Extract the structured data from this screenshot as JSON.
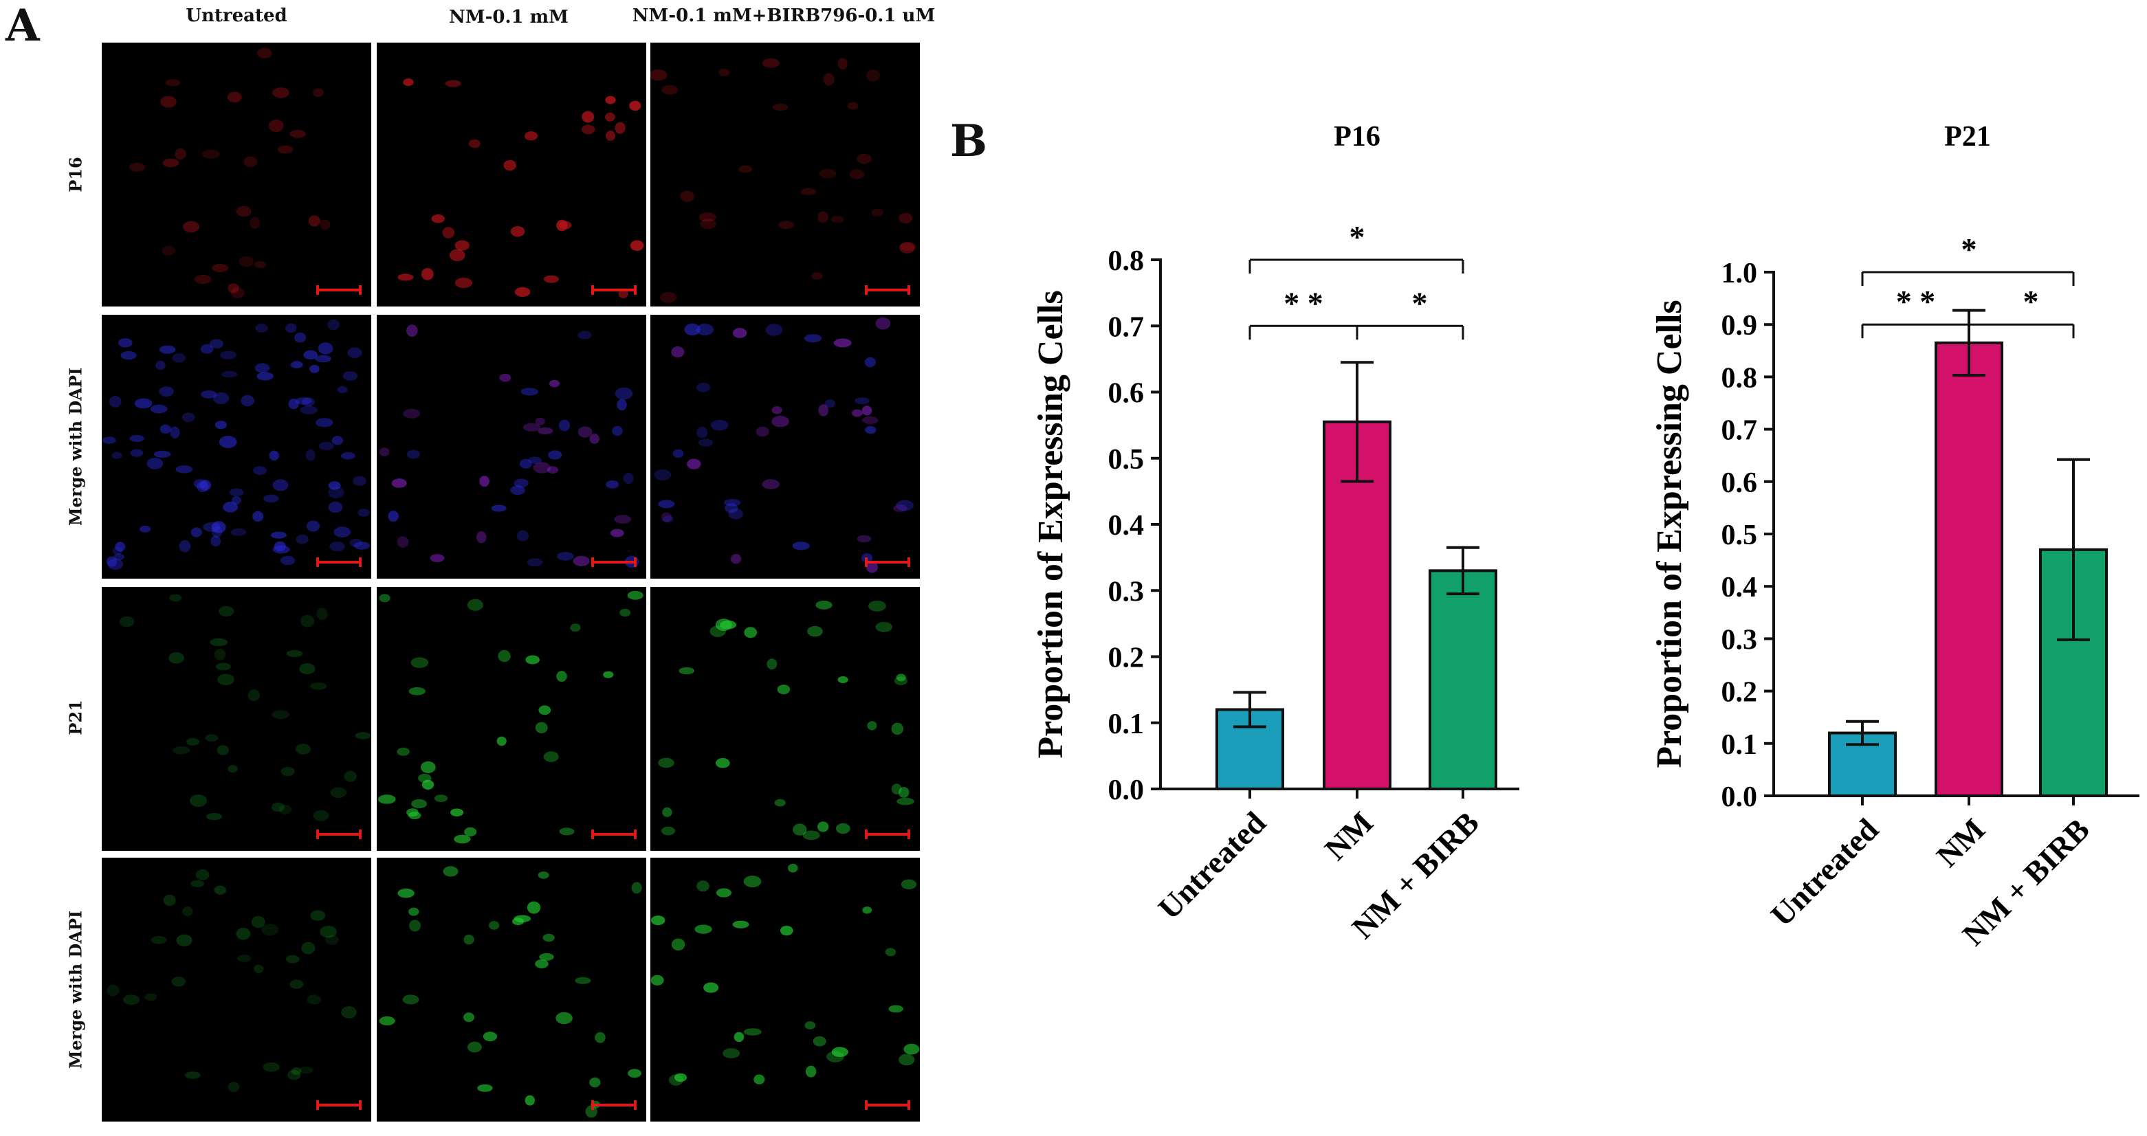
{
  "figure": {
    "panel_a_label": "A",
    "panel_b_label": "B",
    "column_labels": [
      "Untreated",
      "NM-0.1 mM",
      "NM-0.1 mM+BIRB796-0.1 uM"
    ],
    "row_labels": [
      "P16",
      "Merge with DAPI",
      "P21",
      "Merge with DAPI"
    ]
  },
  "colors": {
    "untreated_bar": "#1a9db8",
    "nm_bar": "#d4116a",
    "nm_birb_bar": "#11a06a",
    "p16_stain": "#c0141c",
    "dapi_stain": "#2a2ad8",
    "p21_stain": "#22c830",
    "scale_bar": "#e01818"
  },
  "chart_data": [
    {
      "type": "bar",
      "title": "P16",
      "ylabel": "Proportion of Expressing Cells",
      "categories": [
        "Untreated",
        "NM",
        "NM + BIRB"
      ],
      "values": [
        0.12,
        0.555,
        0.33
      ],
      "errors": [
        0.026,
        0.09,
        0.035
      ],
      "ylim": [
        0,
        0.8
      ],
      "yticks": [
        "0.0",
        "0.1",
        "0.2",
        "0.3",
        "0.4",
        "0.5",
        "0.6",
        "0.7",
        "0.8"
      ],
      "significance": [
        {
          "marks": [
            "* *",
            "*"
          ],
          "level": 0.7
        },
        {
          "marks": [
            "*"
          ],
          "level": 0.8
        }
      ]
    },
    {
      "type": "bar",
      "title": "P21",
      "ylabel": "Proportion of Expressing Cells",
      "categories": [
        "Untreated",
        "NM",
        "NM + BIRB"
      ],
      "values": [
        0.12,
        0.865,
        0.47
      ],
      "errors": [
        0.022,
        0.062,
        0.172
      ],
      "ylim": [
        0,
        1.0
      ],
      "yticks": [
        "0.0",
        "0.1",
        "0.2",
        "0.3",
        "0.4",
        "0.5",
        "0.6",
        "0.7",
        "0.8",
        "0.9",
        "1.0"
      ],
      "significance": [
        {
          "marks": [
            "* *",
            "*"
          ],
          "level": 0.9
        },
        {
          "marks": [
            "*"
          ],
          "level": 1.0
        }
      ]
    }
  ]
}
